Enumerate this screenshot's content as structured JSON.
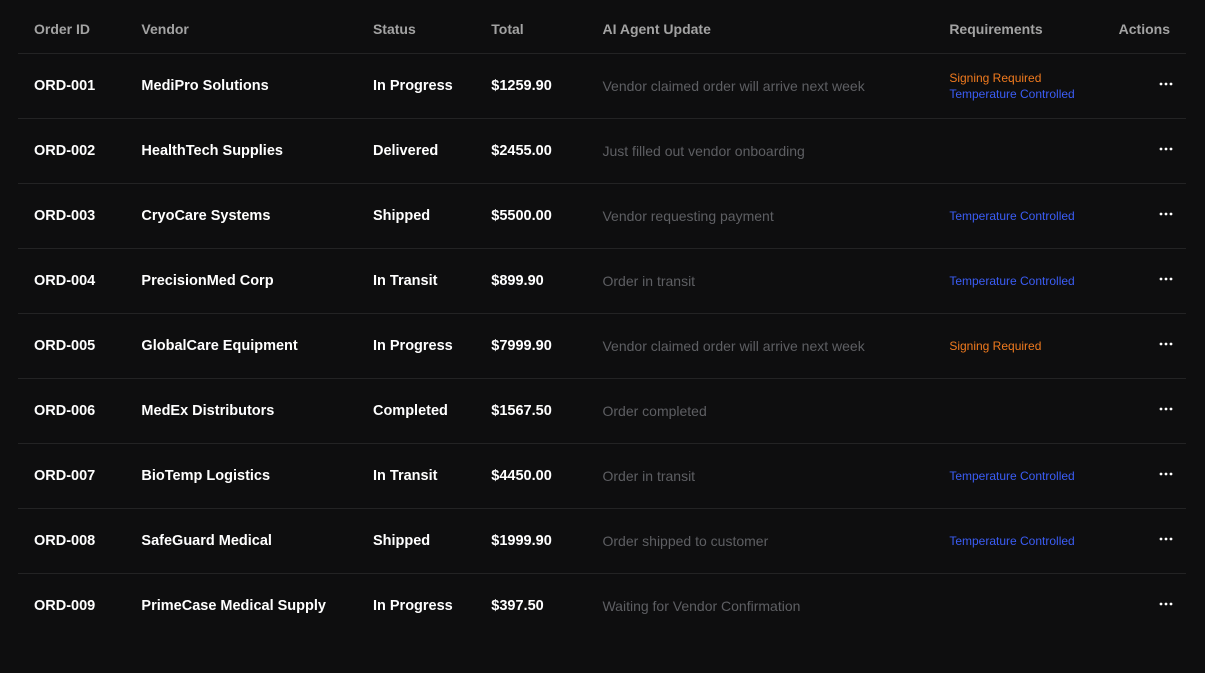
{
  "colors": {
    "background": "#0e0e0f",
    "divider": "#232324",
    "header_text": "#a3a3a3",
    "muted_text": "#5e5f63",
    "signing_required": "#f07a1e",
    "temperature_controlled": "#3b5df5"
  },
  "table": {
    "headers": {
      "order_id": "Order ID",
      "vendor": "Vendor",
      "status": "Status",
      "total": "Total",
      "ai_update": "AI Agent Update",
      "requirements": "Requirements",
      "actions": "Actions"
    },
    "action_icon": "more-horizontal-icon",
    "rows": [
      {
        "order_id": "ORD-001",
        "vendor": "MediPro Solutions",
        "status": "In Progress",
        "total": "$1259.90",
        "update": "Vendor claimed order will arrive next week",
        "requirements": [
          "Signing Required",
          "Temperature Controlled"
        ]
      },
      {
        "order_id": "ORD-002",
        "vendor": "HealthTech Supplies",
        "status": "Delivered",
        "total": "$2455.00",
        "update": "Just filled out vendor onboarding",
        "requirements": []
      },
      {
        "order_id": "ORD-003",
        "vendor": "CryoCare Systems",
        "status": "Shipped",
        "total": "$5500.00",
        "update": "Vendor requesting payment",
        "requirements": [
          "Temperature Controlled"
        ]
      },
      {
        "order_id": "ORD-004",
        "vendor": "PrecisionMed Corp",
        "status": "In Transit",
        "total": "$899.90",
        "update": "Order in transit",
        "requirements": [
          "Temperature Controlled"
        ]
      },
      {
        "order_id": "ORD-005",
        "vendor": "GlobalCare Equipment",
        "status": "In Progress",
        "total": "$7999.90",
        "update": "Vendor claimed order will arrive next week",
        "requirements": [
          "Signing Required"
        ]
      },
      {
        "order_id": "ORD-006",
        "vendor": "MedEx Distributors",
        "status": "Completed",
        "total": "$1567.50",
        "update": "Order completed",
        "requirements": []
      },
      {
        "order_id": "ORD-007",
        "vendor": "BioTemp Logistics",
        "status": "In Transit",
        "total": "$4450.00",
        "update": "Order in transit",
        "requirements": [
          "Temperature Controlled"
        ]
      },
      {
        "order_id": "ORD-008",
        "vendor": "SafeGuard Medical",
        "status": "Shipped",
        "total": "$1999.90",
        "update": "Order shipped to customer",
        "requirements": [
          "Temperature Controlled"
        ]
      },
      {
        "order_id": "ORD-009",
        "vendor": "PrimeCase Medical Supply",
        "status": "In Progress",
        "total": "$397.50",
        "update": "Waiting for Vendor Confirmation",
        "requirements": []
      }
    ]
  }
}
